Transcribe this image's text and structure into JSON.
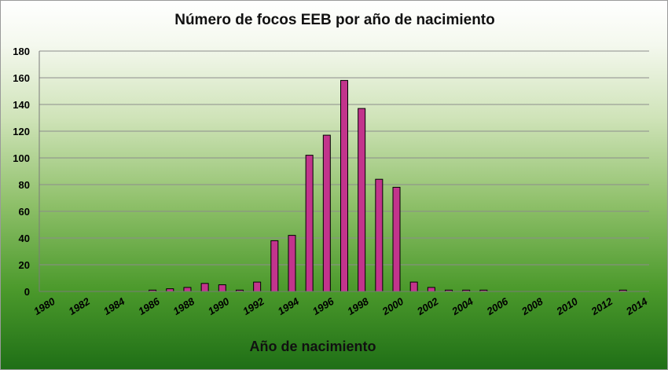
{
  "chart_data": {
    "type": "bar",
    "title": "Número de focos EEB por año de nacimiento",
    "xlabel": "Año de nacimiento",
    "ylabel": "",
    "ylim": [
      0,
      180
    ],
    "yticks": [
      0,
      20,
      40,
      60,
      80,
      100,
      120,
      140,
      160,
      180
    ],
    "xticks": [
      1980,
      1982,
      1984,
      1986,
      1988,
      1990,
      1992,
      1994,
      1996,
      1998,
      2000,
      2002,
      2004,
      2006,
      2008,
      2010,
      2012,
      2014
    ],
    "grid": true,
    "bar_color": "#c2348c",
    "x": [
      1986,
      1987,
      1988,
      1989,
      1990,
      1991,
      1992,
      1993,
      1994,
      1995,
      1996,
      1997,
      1998,
      1999,
      2000,
      2001,
      2002,
      2003,
      2004,
      2005,
      2013
    ],
    "values": [
      1,
      2,
      3,
      6,
      5,
      1,
      7,
      38,
      42,
      102,
      117,
      158,
      137,
      84,
      78,
      7,
      3,
      1,
      1,
      1,
      1
    ]
  }
}
